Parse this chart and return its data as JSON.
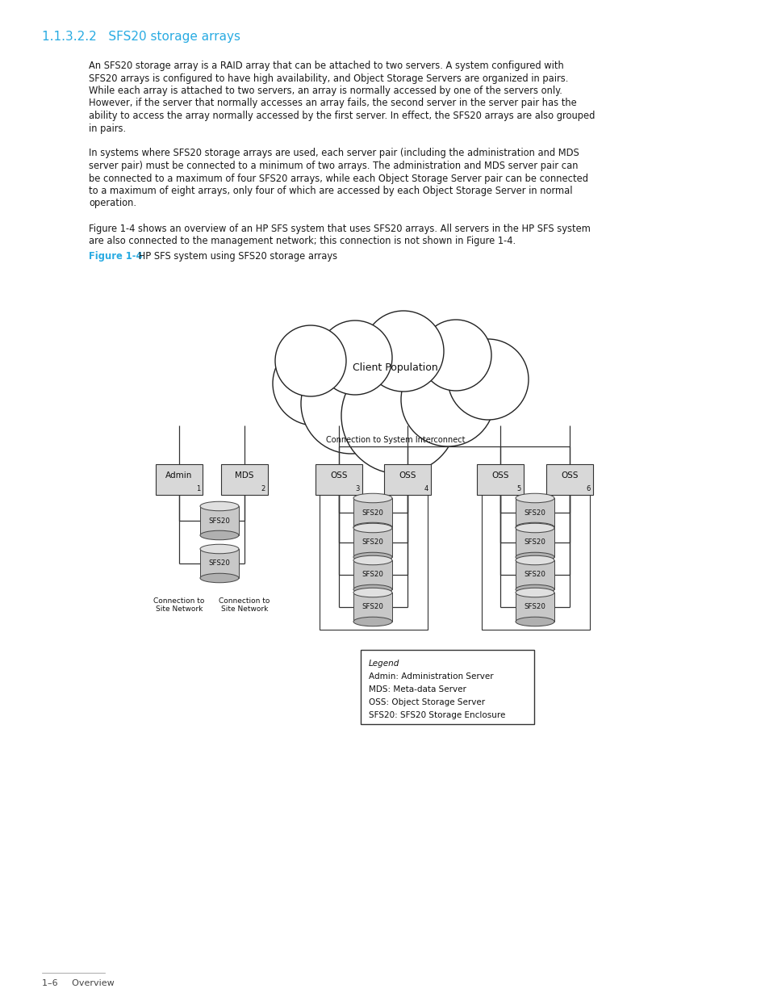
{
  "bg_color": "#ffffff",
  "title_color": "#29abe2",
  "title": "1.1.3.2.2   SFS20 storage arrays",
  "title_fontsize": 11,
  "body_text": [
    "An SFS20 storage array is a RAID array that can be attached to two servers. A system configured with",
    "SFS20 arrays is configured to have high availability, and Object Storage Servers are organized in pairs.",
    "While each array is attached to two servers, an array is normally accessed by one of the servers only.",
    "However, if the server that normally accesses an array fails, the second server in the server pair has the",
    "ability to access the array normally accessed by the first server. In effect, the SFS20 arrays are also grouped",
    "in pairs.",
    "",
    "In systems where SFS20 storage arrays are used, each server pair (including the administration and MDS",
    "server pair) must be connected to a minimum of two arrays. The administration and MDS server pair can",
    "be connected to a maximum of four SFS20 arrays, while each Object Storage Server pair can be connected",
    "to a maximum of eight arrays, only four of which are accessed by each Object Storage Server in normal",
    "operation.",
    "",
    "Figure 1-4 shows an overview of an HP SFS system that uses SFS20 arrays. All servers in the HP SFS system",
    "are also connected to the management network; this connection is not shown in Figure 1-4."
  ],
  "fig_label": "Figure 1-4",
  "fig_caption": " HP SFS system using SFS20 storage arrays",
  "footer_text": "1–6     Overview",
  "legend_lines": [
    "Legend",
    "Admin: Administration Server",
    "MDS: Meta-data Server",
    "OSS: Object Storage Server",
    "SFS20: SFS20 Storage Enclosure"
  ]
}
